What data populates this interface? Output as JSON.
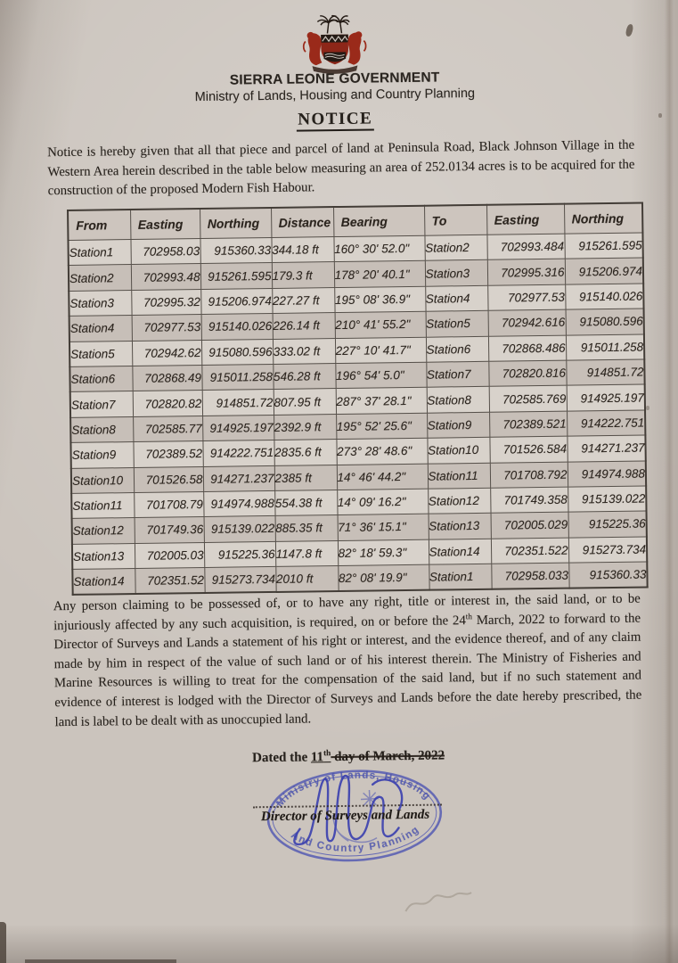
{
  "header": {
    "government_title": "SIERRA LEONE GOVERNMENT",
    "ministry_subtitle": "Ministry of Lands, Housing and Country Planning",
    "notice_title": "NOTICE",
    "coat_of_arms_icon": "sierra-leone-coat-of-arms"
  },
  "intro_paragraph": "Notice is hereby given that all that piece and parcel of land at Peninsula Road, Black Johnson Village in the Western Area herein described in the table below measuring an area of 252.0134 acres is to be acquired for the construction of the proposed Modern Fish Habour.",
  "survey_table": {
    "columns": [
      "From",
      "Easting",
      "Northing",
      "Distance",
      "Bearing",
      "To",
      "Easting",
      "Northing"
    ],
    "rows": [
      [
        "Station1",
        "702958.03",
        "915360.33",
        "344.18 ft",
        "160° 30' 52.0\"",
        "Station2",
        "702993.484",
        "915261.595"
      ],
      [
        "Station2",
        "702993.48",
        "915261.595",
        "179.3 ft",
        "178° 20' 40.1\"",
        "Station3",
        "702995.316",
        "915206.974"
      ],
      [
        "Station3",
        "702995.32",
        "915206.974",
        "227.27 ft",
        "195° 08' 36.9\"",
        "Station4",
        "702977.53",
        "915140.026"
      ],
      [
        "Station4",
        "702977.53",
        "915140.026",
        "226.14 ft",
        "210° 41' 55.2\"",
        "Station5",
        "702942.616",
        "915080.596"
      ],
      [
        "Station5",
        "702942.62",
        "915080.596",
        "333.02 ft",
        "227° 10' 41.7\"",
        "Station6",
        "702868.486",
        "915011.258"
      ],
      [
        "Station6",
        "702868.49",
        "915011.258",
        "546.28 ft",
        "196° 54' 5.0\"",
        "Station7",
        "702820.816",
        "914851.72"
      ],
      [
        "Station7",
        "702820.82",
        "914851.72",
        "807.95 ft",
        "287° 37' 28.1\"",
        "Station8",
        "702585.769",
        "914925.197"
      ],
      [
        "Station8",
        "702585.77",
        "914925.197",
        "2392.9 ft",
        "195° 52' 25.6\"",
        "Station9",
        "702389.521",
        "914222.751"
      ],
      [
        "Station9",
        "702389.52",
        "914222.751",
        "2835.6 ft",
        "273° 28' 48.6\"",
        "Station10",
        "701526.584",
        "914271.237"
      ],
      [
        "Station10",
        "701526.58",
        "914271.237",
        "2385 ft",
        "14° 46' 44.2\"",
        "Station11",
        "701708.792",
        "914974.988"
      ],
      [
        "Station11",
        "701708.79",
        "914974.988",
        "554.38 ft",
        "14° 09' 16.2\"",
        "Station12",
        "701749.358",
        "915139.022"
      ],
      [
        "Station12",
        "701749.36",
        "915139.022",
        "885.35 ft",
        "71° 36' 15.1\"",
        "Station13",
        "702005.029",
        "915225.36"
      ],
      [
        "Station13",
        "702005.03",
        "915225.36",
        "1147.8 ft",
        "82° 18' 59.3\"",
        "Station14",
        "702351.522",
        "915273.734"
      ],
      [
        "Station14",
        "702351.52",
        "915273.734",
        "2010 ft",
        "82° 08' 19.9\"",
        "Station1",
        "702958.033",
        "915360.33"
      ]
    ]
  },
  "acquisition_paragraph": {
    "part1": "Any person claiming to be possessed of, or to have any right, title or interest in, the said land, or to be injuriously affected by any such acquisition, is required, on or before the 24",
    "sup": "th",
    "part2": " March, 2022 to forward to the Director of Surveys and Lands a statement of his right or interest, and the evidence thereof, and of any claim made by him in respect of the value of such land or of his interest therein. The Ministry of Fisheries and Marine Resources is willing to treat for the compensation of the said land, but if no such statement and evidence of interest is lodged with the Director of Surveys and Lands before the date hereby prescribed, the land is label to be dealt with as unoccupied land."
  },
  "closing": {
    "dated_prefix": "Dated the ",
    "dated_day": "11",
    "dated_day_sup": "th",
    "dated_suffix": " day of March, 2022",
    "director_label": "Director of Surveys and Lands",
    "stamp": {
      "top_text": "Ministry of Lands, Housing",
      "bottom_text": "And Country Planning"
    }
  },
  "colors": {
    "paper": "#cbc4bd",
    "ink": "#26211c",
    "table_border": "#56504a",
    "stamp_ink": "#4d55b2",
    "signature_ink": "#3a3fae"
  }
}
